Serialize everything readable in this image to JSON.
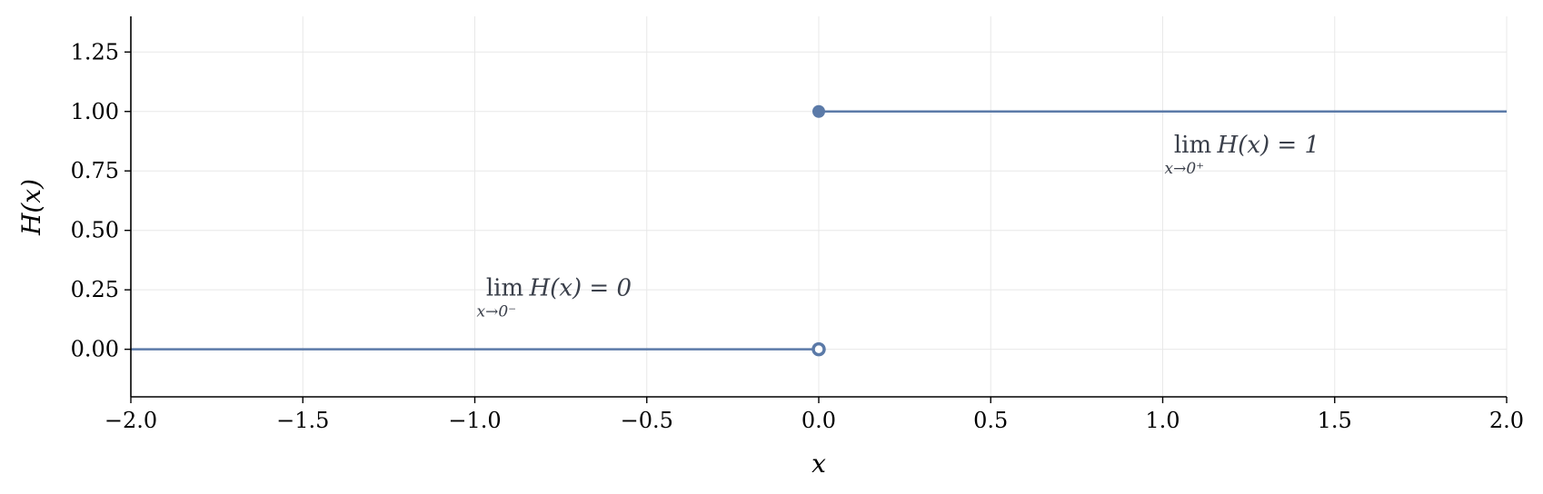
{
  "chart_data": {
    "type": "line",
    "xlabel": "x",
    "ylabel": "H(x)",
    "xlim": [
      -2.0,
      2.0
    ],
    "ylim": [
      -0.2,
      1.4
    ],
    "x_ticks": [
      -2.0,
      -1.5,
      -1.0,
      -0.5,
      0.0,
      0.5,
      1.0,
      1.5,
      2.0
    ],
    "x_tick_labels": [
      "−2.0",
      "−1.5",
      "−1.0",
      "−0.5",
      "0.0",
      "0.5",
      "1.0",
      "1.5",
      "2.0"
    ],
    "y_ticks": [
      0.0,
      0.25,
      0.5,
      0.75,
      1.0,
      1.25
    ],
    "y_tick_labels": [
      "0.00",
      "0.25",
      "0.50",
      "0.75",
      "1.00",
      "1.25"
    ],
    "grid": true,
    "series_color": "#5b7aa8",
    "series": [
      {
        "segments": [
          {
            "x": [
              -2.0,
              0.0
            ],
            "y": [
              0.0,
              0.0
            ]
          },
          {
            "x": [
              0.0,
              2.0
            ],
            "y": [
              1.0,
              1.0
            ]
          }
        ]
      }
    ],
    "points": [
      {
        "x": 0.0,
        "y": 0.0,
        "style": "open"
      },
      {
        "x": 0.0,
        "y": 1.0,
        "style": "filled"
      }
    ],
    "annotations": [
      {
        "lim": "lim",
        "sub": "x→0⁻",
        "expr": "H(x) = 0",
        "x": -1.0,
        "y": 0.2
      },
      {
        "lim": "lim",
        "sub": "x→0⁺",
        "expr": "H(x) = 1",
        "x": 1.0,
        "y": 0.8
      }
    ]
  }
}
